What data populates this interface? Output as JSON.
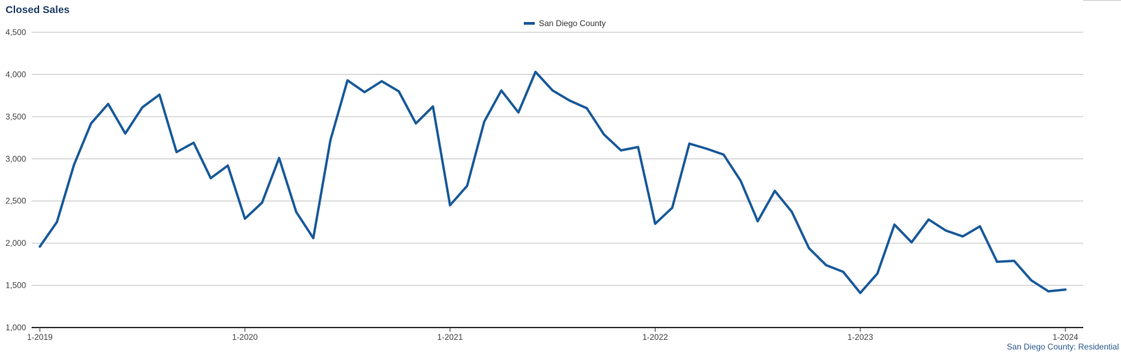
{
  "chart_data": {
    "type": "line",
    "title": "Closed Sales",
    "xlabel": "",
    "ylabel": "",
    "ylim": [
      1000,
      4500
    ],
    "y_ticks": [
      "1,000",
      "1,500",
      "2,000",
      "2,500",
      "3,000",
      "3,500",
      "4,000",
      "4,500"
    ],
    "x_tick_labels": [
      "1-2019",
      "1-2020",
      "1-2021",
      "1-2022",
      "1-2023",
      "1-2024"
    ],
    "x_range": [
      "2019-01",
      "2024-01"
    ],
    "grid": true,
    "legend_position": "top-center",
    "series": [
      {
        "name": "San Diego County",
        "color": "#1a5a9a",
        "x": [
          "2019-01",
          "2019-02",
          "2019-03",
          "2019-04",
          "2019-05",
          "2019-06",
          "2019-07",
          "2019-08",
          "2019-09",
          "2019-10",
          "2019-11",
          "2019-12",
          "2020-01",
          "2020-02",
          "2020-03",
          "2020-04",
          "2020-05",
          "2020-06",
          "2020-07",
          "2020-08",
          "2020-09",
          "2020-10",
          "2020-11",
          "2020-12",
          "2021-01",
          "2021-02",
          "2021-03",
          "2021-04",
          "2021-05",
          "2021-06",
          "2021-07",
          "2021-08",
          "2021-09",
          "2021-10",
          "2021-11",
          "2021-12",
          "2022-01",
          "2022-02",
          "2022-03",
          "2022-04",
          "2022-05",
          "2022-06",
          "2022-07",
          "2022-08",
          "2022-09",
          "2022-10",
          "2022-11",
          "2022-12",
          "2023-01",
          "2023-02",
          "2023-03",
          "2023-04",
          "2023-05",
          "2023-06",
          "2023-07",
          "2023-08",
          "2023-09",
          "2023-10",
          "2023-11",
          "2023-12",
          "2024-01"
        ],
        "values": [
          1960,
          2250,
          2930,
          3420,
          3650,
          3300,
          3610,
          3760,
          3080,
          3190,
          2770,
          2920,
          2290,
          2480,
          3010,
          2370,
          2060,
          3220,
          3930,
          3790,
          3920,
          3800,
          3420,
          3620,
          2450,
          2680,
          3440,
          3810,
          3550,
          4030,
          3810,
          3690,
          3600,
          3290,
          3100,
          3140,
          2230,
          2420,
          3180,
          3120,
          3050,
          2740,
          2260,
          2620,
          2370,
          1940,
          1740,
          1660,
          1410,
          1640,
          2220,
          2010,
          2280,
          2150,
          2080,
          2200,
          1780,
          1790,
          1560,
          1430,
          1450
        ]
      }
    ]
  },
  "footer_label": "San Diego County: Residential",
  "colors": {
    "series": "#1a5a9a",
    "title": "#1f3f66",
    "grid": "#c0c0c0",
    "axis": "#333333",
    "tick_text": "#444444"
  }
}
